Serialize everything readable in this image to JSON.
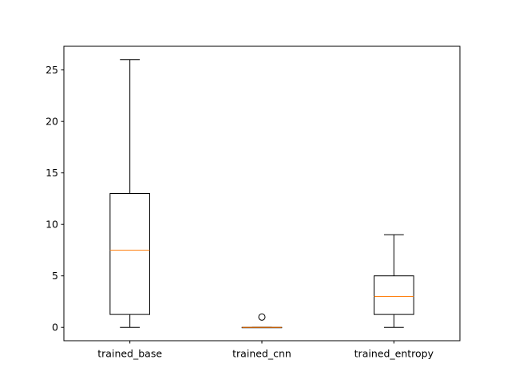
{
  "chart_data": {
    "type": "box",
    "title": "",
    "xlabel": "",
    "ylabel": "",
    "ylim": [
      -1.3,
      27.3
    ],
    "yticks": [
      0,
      5,
      10,
      15,
      20,
      25
    ],
    "ytick_labels": [
      "0",
      "5",
      "10",
      "15",
      "20",
      "25"
    ],
    "categories": [
      "trained_base",
      "trained_cnn",
      "trained_entropy"
    ],
    "boxes": [
      {
        "label": "trained_base",
        "whisker_low": 0,
        "q1": 1.25,
        "median": 7.5,
        "q3": 13,
        "whisker_high": 26,
        "outliers": []
      },
      {
        "label": "trained_cnn",
        "whisker_low": 0,
        "q1": 0,
        "median": 0,
        "q3": 0,
        "whisker_high": 0,
        "outliers": [
          1
        ]
      },
      {
        "label": "trained_entropy",
        "whisker_low": 0,
        "q1": 1.25,
        "median": 3,
        "q3": 5,
        "whisker_high": 9,
        "outliers": []
      }
    ],
    "grid": false,
    "colors": {
      "box": "#000000",
      "median": "#ff7f0e",
      "background": "#ffffff"
    }
  }
}
